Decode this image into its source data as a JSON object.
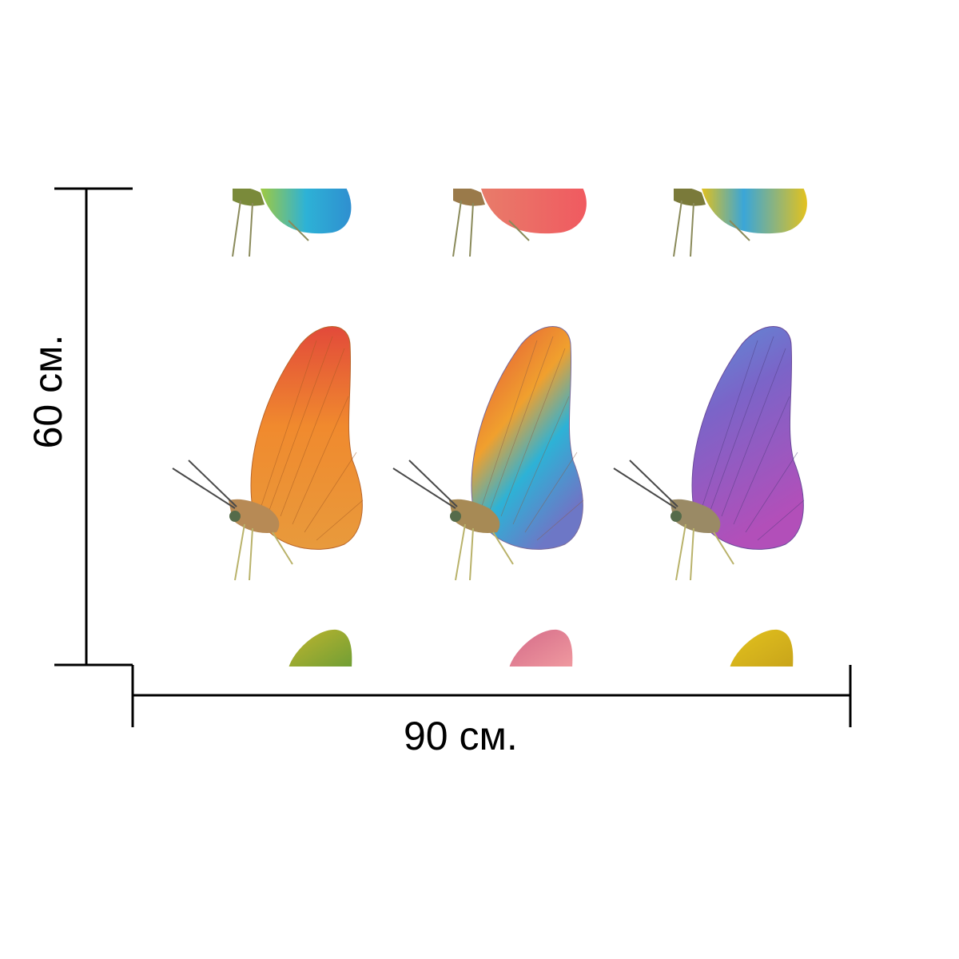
{
  "dimensions": {
    "width_label": "90 см.",
    "height_label": "60 см."
  },
  "pattern": {
    "rows": [
      [
        "#2db2d6",
        "#f06a5c",
        "#3aa6d8"
      ],
      [
        "#e8923a",
        "#e8923a",
        "#8b63c9"
      ],
      [
        "#a9b83a",
        "#e0779a",
        "#e3c21e"
      ]
    ],
    "accent_top": [
      "#f0a040",
      "#e6452d",
      "#6a86d8"
    ]
  }
}
